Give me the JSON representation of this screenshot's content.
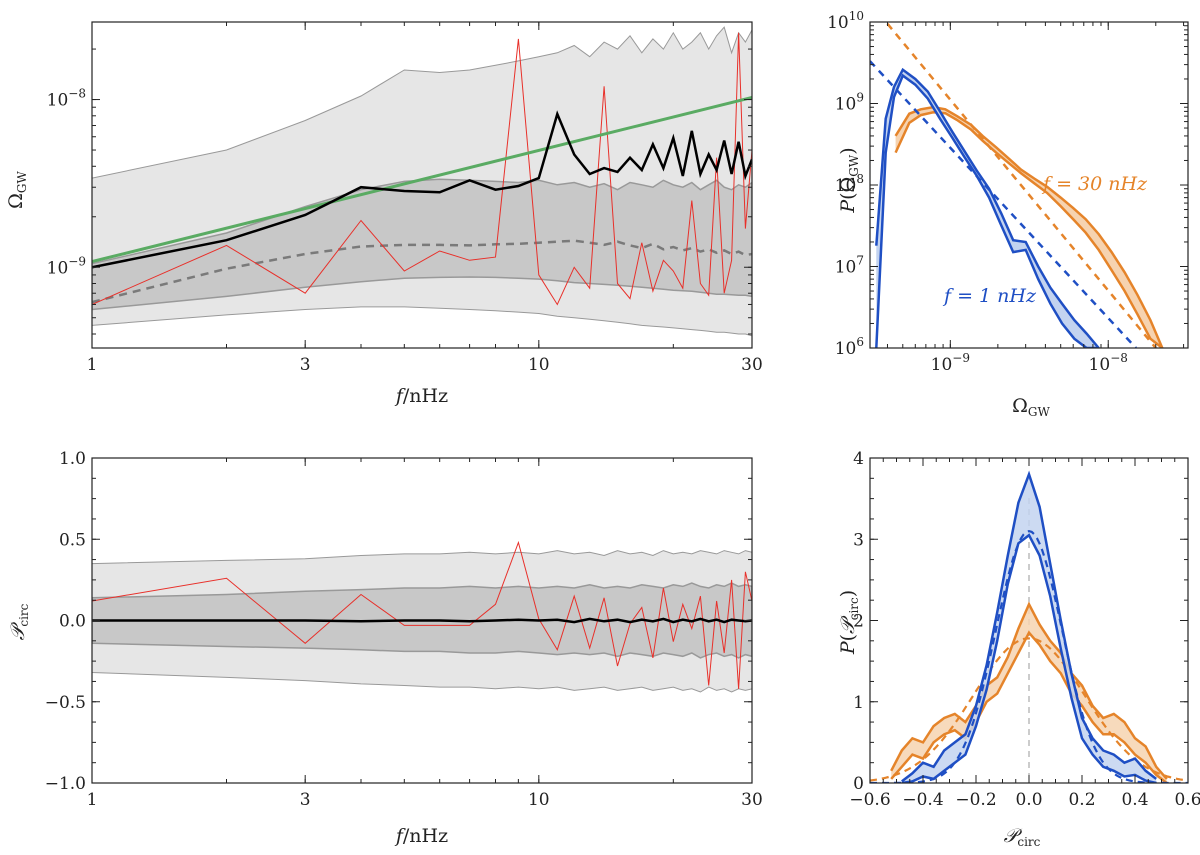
{
  "colors": {
    "band_outer": "#e6e6e6",
    "band_inner": "#c8c8c8",
    "band_edge": "#999999",
    "median": "#000000",
    "dashed": "#7a7a7a",
    "realization": "#e8302a",
    "powerlaw": "#5aab63",
    "blue": "#1f4fc4",
    "blue_fill": "#c3d3f0",
    "orange": "#e5842a",
    "orange_fill": "#f6d3b0"
  },
  "chart_data": [
    {
      "id": "omega_vs_f",
      "type": "line",
      "xlabel": "f/nHz",
      "ylabel": "Ω_GW",
      "xscale": "log",
      "yscale": "log",
      "xlim": [
        1,
        30
      ],
      "ylim": [
        3.3e-10,
        2.9e-08
      ],
      "xticks": [
        {
          "v": 1,
          "label": "1"
        },
        {
          "v": 3,
          "label": "3"
        },
        {
          "v": 10,
          "label": "10"
        },
        {
          "v": 30,
          "label": "30"
        }
      ],
      "yticks": [
        {
          "v": 1e-09,
          "label": "10",
          "exp": "−9"
        },
        {
          "v": 1e-08,
          "label": "10",
          "exp": "−8"
        }
      ],
      "x": [
        1,
        2,
        3,
        4,
        5,
        6,
        7,
        8,
        9,
        10,
        11,
        12,
        13,
        14,
        15,
        16,
        17,
        18,
        19,
        20,
        21,
        22,
        23,
        24,
        25,
        26,
        27,
        28,
        29,
        30
      ],
      "outer_upper": [
        3.4e-09,
        5e-09,
        7.5e-09,
        1.05e-08,
        1.5e-08,
        1.45e-08,
        1.5e-08,
        1.6e-08,
        1.7e-08,
        1.8e-08,
        1.9e-08,
        2.1e-08,
        1.8e-08,
        2.2e-08,
        2e-08,
        2.4e-08,
        1.9e-08,
        2.3e-08,
        2e-08,
        2.5e-08,
        2e-08,
        2.2e-08,
        2.5e-08,
        2e-08,
        2.4e-08,
        2.7e-08,
        1.9e-08,
        2.5e-08,
        2.2e-08,
        2.6e-08
      ],
      "outer_lower": [
        4.5e-10,
        5.2e-10,
        5.6e-10,
        5.8e-10,
        5.8e-10,
        5.7e-10,
        5.6e-10,
        5.5e-10,
        5.4e-10,
        5.3e-10,
        5.1e-10,
        5e-10,
        4.9e-10,
        4.8e-10,
        4.7e-10,
        4.6e-10,
        4.5e-10,
        4.45e-10,
        4.4e-10,
        4.35e-10,
        4.3e-10,
        4.25e-10,
        4.2e-10,
        4.15e-10,
        4.1e-10,
        4.1e-10,
        4.05e-10,
        4e-10,
        4e-10,
        3.9e-10
      ],
      "inner_upper": [
        1.05e-09,
        1.6e-09,
        2.3e-09,
        2.9e-09,
        3.25e-09,
        3.35e-09,
        3.3e-09,
        3.25e-09,
        3.2e-09,
        3.3e-09,
        3.1e-09,
        3.2e-09,
        3e-09,
        3.15e-09,
        2.9e-09,
        3.2e-09,
        3.1e-09,
        3e-09,
        3.3e-09,
        3.1e-09,
        3e-09,
        3.2e-09,
        2.9e-09,
        3.1e-09,
        3.3e-09,
        3e-09,
        2.9e-09,
        3.1e-09,
        3e-09,
        3.2e-09
      ],
      "inner_lower": [
        5.6e-10,
        6.7e-10,
        7.6e-10,
        8.2e-10,
        8.6e-10,
        8.7e-10,
        8.75e-10,
        8.7e-10,
        8.6e-10,
        8.5e-10,
        8.3e-10,
        8.1e-10,
        8e-10,
        7.9e-10,
        7.8e-10,
        7.7e-10,
        7.6e-10,
        7.5e-10,
        7.4e-10,
        7.3e-10,
        7.25e-10,
        7.2e-10,
        7.1e-10,
        7e-10,
        6.9e-10,
        6.9e-10,
        6.85e-10,
        6.8e-10,
        6.8e-10,
        6.7e-10
      ],
      "median": [
        1e-09,
        1.45e-09,
        2.05e-09,
        3e-09,
        2.85e-09,
        2.8e-09,
        3.3e-09,
        2.9e-09,
        3.05e-09,
        3.4e-09,
        8.2e-09,
        4.7e-09,
        3.6e-09,
        3.9e-09,
        3.7e-09,
        4.5e-09,
        3.8e-09,
        5.4e-09,
        3.9e-09,
        5.9e-09,
        3.5e-09,
        6.5e-09,
        3.6e-09,
        4.7e-09,
        3.8e-09,
        5.7e-09,
        3.6e-09,
        5.6e-09,
        3.5e-09,
        4.4e-09
      ],
      "dashed": [
        6.2e-10,
        9.8e-10,
        1.2e-09,
        1.33e-09,
        1.36e-09,
        1.36e-09,
        1.35e-09,
        1.37e-09,
        1.38e-09,
        1.4e-09,
        1.42e-09,
        1.44e-09,
        1.4e-09,
        1.36e-09,
        1.42e-09,
        1.35e-09,
        1.3e-09,
        1.38e-09,
        1.28e-09,
        1.32e-09,
        1.26e-09,
        1.3e-09,
        1.24e-09,
        1.28e-09,
        1.22e-09,
        1.26e-09,
        1.2e-09,
        1.24e-09,
        1.18e-09,
        1.2e-09
      ],
      "realization": [
        6e-10,
        1.35e-09,
        7e-10,
        1.9e-09,
        9.5e-10,
        1.25e-09,
        1.1e-09,
        1.15e-09,
        2.3e-08,
        9e-10,
        6e-10,
        1e-09,
        7.5e-10,
        1.2e-08,
        8e-10,
        6.5e-10,
        1.4e-09,
        7.2e-10,
        1.1e-09,
        9.5e-10,
        7.5e-10,
        2.5e-09,
        8e-10,
        6.8e-10,
        4.5e-09,
        7e-10,
        1.1e-09,
        2.5e-08,
        1.7e-09,
        5e-09
      ],
      "powerlaw": {
        "x": [
          1,
          30
        ],
        "y": [
          1.08e-09,
          1.03e-08
        ]
      }
    },
    {
      "id": "p_omega",
      "type": "line",
      "xlabel": "Ω_GW",
      "ylabel": "P(Ω_GW)",
      "xscale": "log",
      "yscale": "log",
      "xlim": [
        3.1e-10,
        3.2e-08
      ],
      "ylim": [
        1000000.0,
        10000000000.0
      ],
      "xticks": [
        {
          "v": 1e-09,
          "label": "10",
          "exp": "−9"
        },
        {
          "v": 1e-08,
          "label": "10",
          "exp": "−8"
        }
      ],
      "yticks": [
        {
          "v": 1000000.0,
          "label": "10",
          "exp": "6"
        },
        {
          "v": 10000000.0,
          "label": "10",
          "exp": "7"
        },
        {
          "v": 100000000.0,
          "label": "10",
          "exp": "8"
        },
        {
          "v": 1000000000.0,
          "label": "10",
          "exp": "9"
        },
        {
          "v": 10000000000.0,
          "label": "10",
          "exp": "10"
        }
      ],
      "annotations": [
        {
          "text": "f = 30 nHz",
          "series": "orange"
        },
        {
          "text": "f = 1 nHz",
          "series": "blue"
        }
      ],
      "blue": {
        "x": [
          3.4e-10,
          3.9e-10,
          4.4e-10,
          5e-10,
          6e-10,
          7.2e-10,
          8.6e-10,
          1.03e-09,
          1.23e-09,
          1.47e-09,
          1.76e-09,
          2.1e-09,
          2.5e-09,
          3e-09,
          3.6e-09,
          4.3e-09,
          5.1e-09,
          6.1e-09,
          7.3e-09,
          8.7e-09
        ],
        "upper": [
          18000000.0,
          650000000.0,
          1600000000.0,
          2600000000.0,
          2000000000.0,
          1400000000.0,
          800000000.0,
          450000000.0,
          260000000.0,
          150000000.0,
          90000000.0,
          45000000.0,
          21000000.0,
          20000000.0,
          10000000.0,
          5500000.0,
          3500000.0,
          2200000.0,
          1500000.0,
          1000000.0
        ],
        "lower": [
          1000000.0,
          250000000.0,
          1200000000.0,
          2200000000.0,
          1700000000.0,
          1150000000.0,
          650000000.0,
          380000000.0,
          220000000.0,
          130000000.0,
          70000000.0,
          32000000.0,
          15000000.0,
          16000000.0,
          7000000.0,
          3500000.0,
          2000000.0,
          1300000.0,
          1000000.0,
          1000000.0
        ],
        "fit": {
          "x": [
            3.1e-10,
            1.5e-08
          ],
          "y": [
            3300000000.0,
            1000000.0
          ]
        }
      },
      "orange": {
        "x": [
          4.5e-10,
          5.5e-10,
          6.5e-10,
          7.8e-10,
          9.3e-10,
          1.1e-09,
          1.35e-09,
          1.6e-09,
          1.95e-09,
          2.35e-09,
          2.8e-09,
          3.4e-09,
          4.1e-09,
          5e-09,
          6e-09,
          7.2e-09,
          8.7e-09,
          1.05e-08,
          1.27e-08,
          1.53e-08,
          1.85e-08,
          2.2e-08
        ],
        "upper": [
          400000000.0,
          750000000.0,
          850000000.0,
          900000000.0,
          850000000.0,
          700000000.0,
          550000000.0,
          400000000.0,
          290000000.0,
          210000000.0,
          155000000.0,
          120000000.0,
          95000000.0,
          70000000.0,
          52000000.0,
          38000000.0,
          25000000.0,
          15000000.0,
          8500000.0,
          4500000.0,
          2200000.0,
          1000000.0
        ],
        "lower": [
          250000000.0,
          580000000.0,
          720000000.0,
          780000000.0,
          760000000.0,
          630000000.0,
          480000000.0,
          350000000.0,
          250000000.0,
          185000000.0,
          140000000.0,
          105000000.0,
          80000000.0,
          55000000.0,
          38000000.0,
          26000000.0,
          16000000.0,
          9000000.0,
          5000000.0,
          2600000.0,
          1300000.0,
          1000000.0
        ],
        "fit": {
          "x": [
            4e-10,
            2e-08
          ],
          "y": [
            9500000000.0,
            1000000.0
          ]
        }
      }
    },
    {
      "id": "pcirc_vs_f",
      "type": "line",
      "xlabel": "f/nHz",
      "ylabel": "P_circ",
      "xscale": "log",
      "yscale": "linear",
      "xlim": [
        1,
        30
      ],
      "ylim": [
        -1.0,
        1.0
      ],
      "xticks": [
        {
          "v": 1,
          "label": "1"
        },
        {
          "v": 3,
          "label": "3"
        },
        {
          "v": 10,
          "label": "10"
        },
        {
          "v": 30,
          "label": "30"
        }
      ],
      "yticks": [
        {
          "v": 1.0,
          "label": "1.0"
        },
        {
          "v": 0.5,
          "label": "0.5"
        },
        {
          "v": 0.0,
          "label": "0.0"
        },
        {
          "v": -0.5,
          "label": "−0.5"
        },
        {
          "v": -1.0,
          "label": "−1.0"
        }
      ],
      "x": [
        1,
        2,
        3,
        4,
        5,
        6,
        7,
        8,
        9,
        10,
        11,
        12,
        13,
        14,
        15,
        16,
        17,
        18,
        19,
        20,
        21,
        22,
        23,
        24,
        25,
        26,
        27,
        28,
        29,
        30
      ],
      "outer_upper": [
        0.35,
        0.37,
        0.38,
        0.4,
        0.41,
        0.41,
        0.42,
        0.41,
        0.42,
        0.41,
        0.43,
        0.41,
        0.42,
        0.4,
        0.43,
        0.41,
        0.42,
        0.4,
        0.43,
        0.41,
        0.42,
        0.41,
        0.43,
        0.42,
        0.41,
        0.43,
        0.42,
        0.41,
        0.43,
        0.42
      ],
      "outer_lower": [
        -0.32,
        -0.35,
        -0.37,
        -0.39,
        -0.4,
        -0.41,
        -0.41,
        -0.42,
        -0.41,
        -0.42,
        -0.41,
        -0.43,
        -0.42,
        -0.41,
        -0.43,
        -0.42,
        -0.41,
        -0.43,
        -0.42,
        -0.41,
        -0.43,
        -0.42,
        -0.44,
        -0.41,
        -0.43,
        -0.42,
        -0.44,
        -0.42,
        -0.43,
        -0.42
      ],
      "inner_upper": [
        0.14,
        0.16,
        0.18,
        0.19,
        0.2,
        0.2,
        0.21,
        0.2,
        0.21,
        0.2,
        0.21,
        0.2,
        0.22,
        0.2,
        0.21,
        0.2,
        0.22,
        0.21,
        0.2,
        0.22,
        0.21,
        0.23,
        0.21,
        0.2,
        0.22,
        0.21,
        0.23,
        0.21,
        0.22,
        0.21
      ],
      "inner_lower": [
        -0.14,
        -0.16,
        -0.17,
        -0.18,
        -0.19,
        -0.19,
        -0.2,
        -0.2,
        -0.19,
        -0.2,
        -0.21,
        -0.2,
        -0.21,
        -0.2,
        -0.22,
        -0.2,
        -0.21,
        -0.22,
        -0.2,
        -0.21,
        -0.22,
        -0.2,
        -0.23,
        -0.21,
        -0.2,
        -0.22,
        -0.21,
        -0.23,
        -0.21,
        -0.22
      ],
      "median": [
        0.0,
        0.0,
        0.0,
        -0.005,
        0.0,
        0.0,
        -0.005,
        0.0,
        0.005,
        0.0,
        0.005,
        -0.01,
        0.01,
        -0.005,
        0.005,
        -0.01,
        0.005,
        -0.005,
        0.01,
        -0.01,
        0.005,
        -0.005,
        0.01,
        -0.005,
        0.005,
        -0.01,
        0.005,
        0.0,
        -0.005,
        0.0
      ],
      "realization": [
        0.12,
        0.26,
        -0.14,
        0.16,
        -0.03,
        -0.03,
        -0.03,
        0.1,
        0.48,
        0.01,
        -0.18,
        0.15,
        -0.17,
        0.14,
        -0.28,
        -0.02,
        0.08,
        -0.23,
        0.2,
        -0.13,
        0.1,
        -0.05,
        0.15,
        -0.4,
        0.12,
        -0.2,
        0.25,
        -0.42,
        0.3,
        0.12
      ]
    },
    {
      "id": "p_pcirc",
      "type": "line",
      "xlabel": "P_circ",
      "ylabel": "P(P_circ)",
      "xscale": "linear",
      "yscale": "linear",
      "xlim": [
        -0.6,
        0.6
      ],
      "ylim": [
        0,
        4
      ],
      "xticks": [
        {
          "v": -0.6,
          "label": "−0.6"
        },
        {
          "v": -0.4,
          "label": "−0.4"
        },
        {
          "v": -0.2,
          "label": "−0.2"
        },
        {
          "v": 0.0,
          "label": "0.0"
        },
        {
          "v": 0.2,
          "label": "0.2"
        },
        {
          "v": 0.4,
          "label": "0.4"
        },
        {
          "v": 0.6,
          "label": "0.6"
        }
      ],
      "yticks": [
        {
          "v": 0,
          "label": "0"
        },
        {
          "v": 1,
          "label": "1"
        },
        {
          "v": 2,
          "label": "2"
        },
        {
          "v": 3,
          "label": "3"
        },
        {
          "v": 4,
          "label": "4"
        }
      ],
      "blue": {
        "x": [
          -0.48,
          -0.44,
          -0.4,
          -0.36,
          -0.32,
          -0.28,
          -0.24,
          -0.2,
          -0.16,
          -0.12,
          -0.08,
          -0.04,
          0.0,
          0.04,
          0.08,
          0.12,
          0.16,
          0.2,
          0.24,
          0.28,
          0.32,
          0.36,
          0.4,
          0.44,
          0.48
        ],
        "upper": [
          0.02,
          0.12,
          0.25,
          0.2,
          0.4,
          0.5,
          0.6,
          0.95,
          1.45,
          2.1,
          2.8,
          3.45,
          3.8,
          3.4,
          2.7,
          2.0,
          1.35,
          0.8,
          0.55,
          0.4,
          0.35,
          0.25,
          0.3,
          0.15,
          0.05
        ],
        "lower": [
          0.0,
          0.02,
          0.08,
          0.05,
          0.15,
          0.25,
          0.35,
          0.7,
          1.15,
          1.75,
          2.45,
          2.95,
          3.05,
          2.8,
          2.3,
          1.65,
          1.05,
          0.55,
          0.35,
          0.2,
          0.15,
          0.08,
          0.1,
          0.03,
          0.0
        ],
        "fit": {
          "mu": 0.0,
          "amp": 3.1,
          "sigma": 0.125
        }
      },
      "orange": {
        "x": [
          -0.52,
          -0.48,
          -0.44,
          -0.4,
          -0.36,
          -0.32,
          -0.28,
          -0.24,
          -0.2,
          -0.16,
          -0.12,
          -0.08,
          -0.04,
          0.0,
          0.04,
          0.08,
          0.12,
          0.16,
          0.2,
          0.24,
          0.28,
          0.32,
          0.36,
          0.4,
          0.44,
          0.48,
          0.52
        ],
        "upper": [
          0.15,
          0.4,
          0.55,
          0.5,
          0.7,
          0.8,
          0.85,
          0.75,
          0.95,
          1.2,
          1.3,
          1.55,
          1.9,
          2.2,
          1.95,
          1.75,
          1.6,
          1.35,
          1.2,
          0.95,
          0.8,
          0.85,
          0.75,
          0.55,
          0.45,
          0.2,
          0.05
        ],
        "lower": [
          0.05,
          0.2,
          0.35,
          0.3,
          0.5,
          0.6,
          0.65,
          0.55,
          0.75,
          1.0,
          1.1,
          1.35,
          1.6,
          1.85,
          1.7,
          1.5,
          1.35,
          1.1,
          0.95,
          0.75,
          0.6,
          0.6,
          0.5,
          0.35,
          0.25,
          0.1,
          0.0
        ],
        "fit": {
          "mu": 0.0,
          "amp": 1.78,
          "sigma": 0.21
        }
      }
    }
  ]
}
